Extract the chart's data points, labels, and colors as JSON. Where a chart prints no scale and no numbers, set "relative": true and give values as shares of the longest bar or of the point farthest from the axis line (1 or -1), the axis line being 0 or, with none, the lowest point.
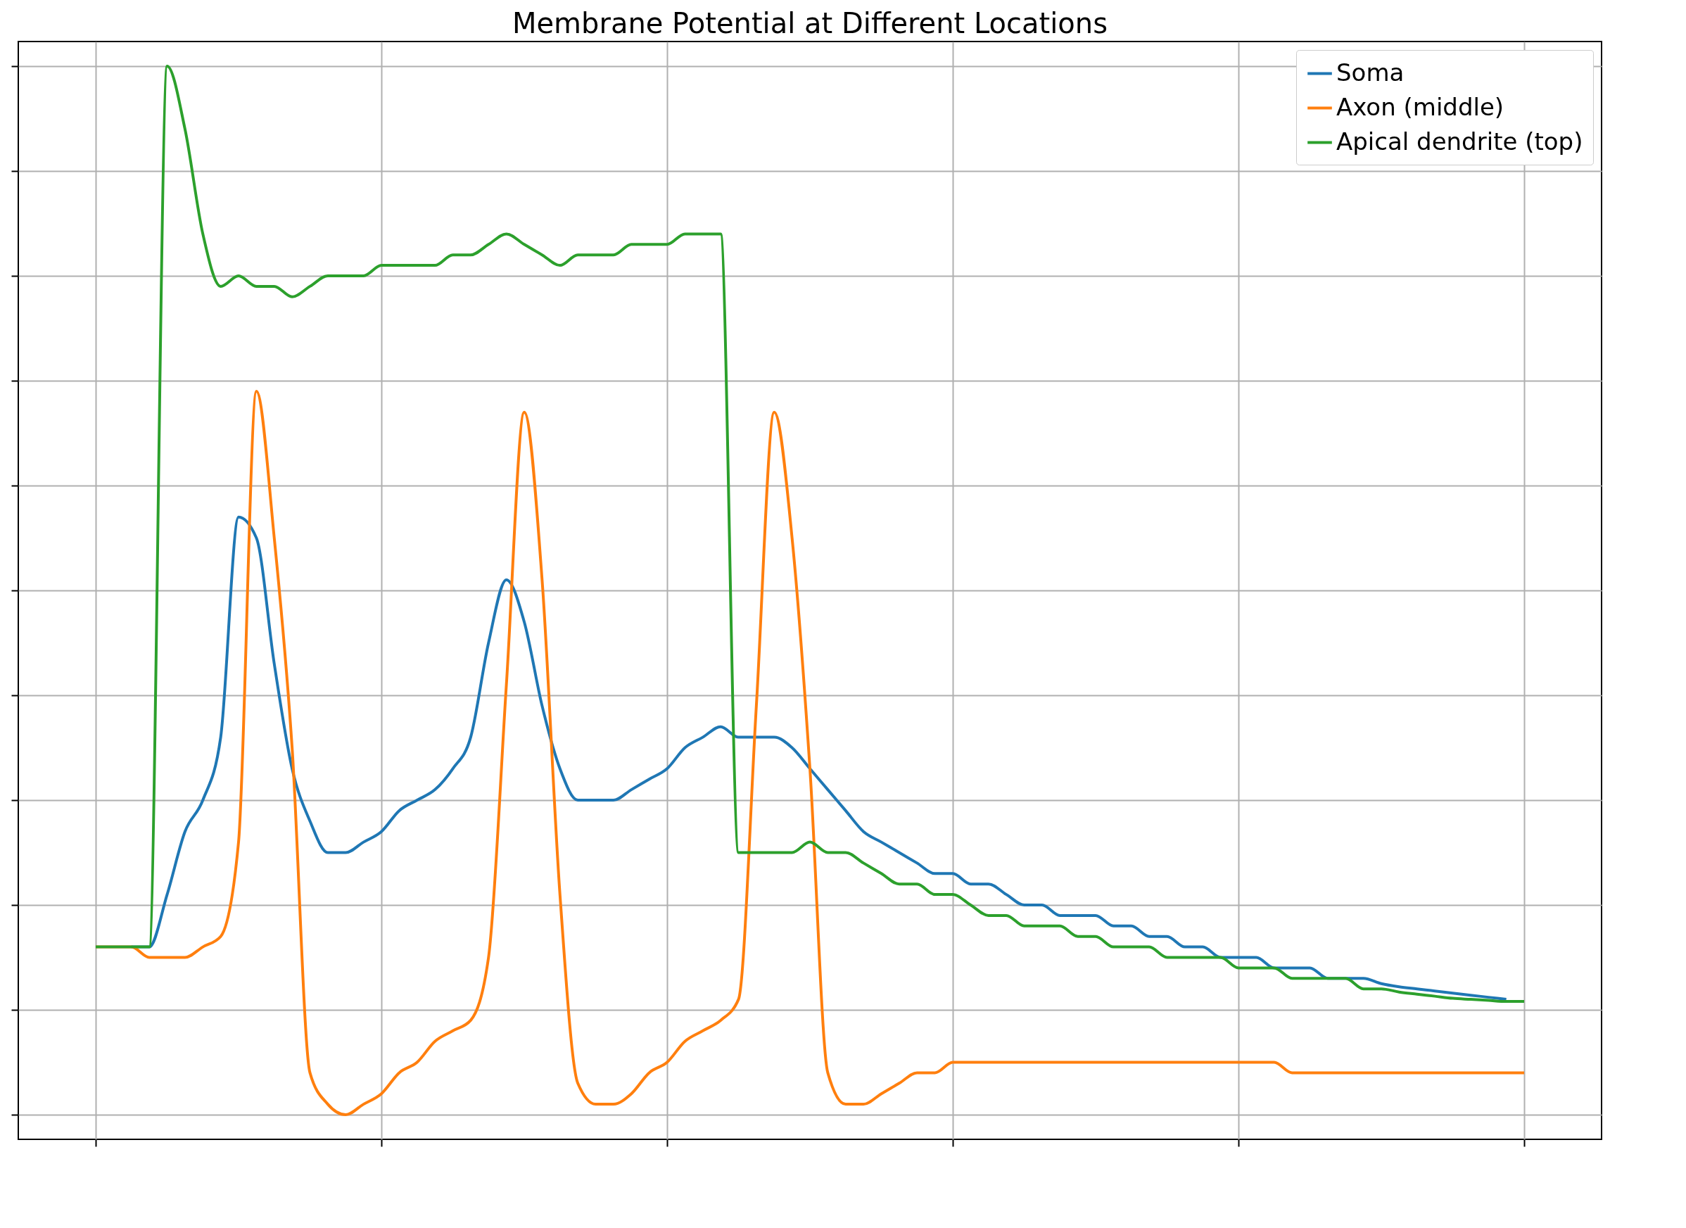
{
  "chart_data": {
    "type": "line",
    "title": "Membrane Potential at Different Locations",
    "relative": true,
    "grid": true,
    "legend": "top right",
    "categories": [
      null,
      null,
      null,
      null,
      null,
      null,
      null,
      null,
      null,
      null,
      null,
      null,
      null,
      null,
      null,
      null,
      null,
      null,
      null,
      null,
      null,
      null,
      null,
      null,
      null,
      null,
      null,
      null,
      null,
      null,
      null,
      null,
      null,
      null,
      null,
      null,
      null,
      null,
      null,
      null,
      null,
      null,
      null,
      null,
      null,
      null,
      null,
      null,
      null,
      null,
      null,
      null,
      null,
      null,
      null,
      null,
      null,
      null,
      null,
      null,
      null,
      null,
      null,
      null,
      null,
      null,
      null,
      null,
      null,
      null,
      null,
      null,
      null,
      null,
      null,
      null,
      null,
      null,
      null,
      null,
      null
    ],
    "series": [
      {
        "name": "Soma",
        "color": "#1f77b4",
        "values": [
          null,
          null,
          0.16,
          0.16,
          0.21,
          0.27,
          0.3,
          0.36,
          0.57,
          0.55,
          0.43,
          0.33,
          0.28,
          0.25,
          0.25,
          0.26,
          0.27,
          0.29,
          0.3,
          0.31,
          0.33,
          0.36,
          0.45,
          0.51,
          0.47,
          0.39,
          0.33,
          0.3,
          0.3,
          0.3,
          0.31,
          0.32,
          0.33,
          0.35,
          0.36,
          0.37,
          0.36,
          0.36,
          0.36,
          0.35,
          0.33,
          0.31,
          0.29,
          0.27,
          0.26,
          0.25,
          0.24,
          0.23,
          0.23,
          0.22,
          0.22,
          0.21,
          0.2,
          0.2,
          0.19,
          0.19,
          0.19,
          0.18,
          0.18,
          0.17,
          0.17,
          0.16,
          0.16,
          0.15,
          0.15,
          0.15,
          0.14,
          0.14,
          0.14,
          0.13,
          0.13,
          0.13,
          0.125,
          0.122,
          0.12,
          0.118,
          0.116,
          0.114,
          0.112,
          0.11,
          null
        ]
      },
      {
        "name": "Axon (middle)",
        "color": "#ff7f0e",
        "values": [
          0.16,
          0.16,
          0.16,
          0.15,
          0.15,
          0.15,
          0.16,
          0.17,
          0.26,
          0.69,
          0.55,
          0.35,
          0.04,
          0.01,
          0,
          0.01,
          0.02,
          0.04,
          0.05,
          0.07,
          0.08,
          0.09,
          0.15,
          0.41,
          0.67,
          0.51,
          0.21,
          0.03,
          0.01,
          0.01,
          0.02,
          0.04,
          0.05,
          0.07,
          0.08,
          0.09,
          0.11,
          0.39,
          0.67,
          0.55,
          0.33,
          0.04,
          0.01,
          0.01,
          0.02,
          0.03,
          0.04,
          0.04,
          0.05,
          0.05,
          0.05,
          0.05,
          0.05,
          0.05,
          0.05,
          0.05,
          0.05,
          0.05,
          0.05,
          0.05,
          0.05,
          0.05,
          0.05,
          0.05,
          0.05,
          0.05,
          0.05,
          0.04,
          0.04,
          0.04,
          0.04,
          0.04,
          0.04,
          0.04,
          0.04,
          0.04,
          0.04,
          0.04,
          0.04,
          0.04,
          0.04
        ]
      },
      {
        "name": "Apical dendrite (top)",
        "color": "#2ca02c",
        "values": [
          0.16,
          0.16,
          0.16,
          0.16,
          1,
          0.94,
          0.84,
          0.79,
          0.8,
          0.79,
          0.79,
          0.78,
          0.79,
          0.8,
          0.8,
          0.8,
          0.81,
          0.81,
          0.81,
          0.81,
          0.82,
          0.82,
          0.83,
          0.84,
          0.83,
          0.82,
          0.81,
          0.82,
          0.82,
          0.82,
          0.83,
          0.83,
          0.83,
          0.84,
          0.84,
          0.84,
          0.25,
          0.25,
          0.25,
          0.25,
          0.26,
          0.25,
          0.25,
          0.24,
          0.23,
          0.22,
          0.22,
          0.21,
          0.21,
          0.2,
          0.19,
          0.19,
          0.18,
          0.18,
          0.18,
          0.17,
          0.17,
          0.16,
          0.16,
          0.16,
          0.15,
          0.15,
          0.15,
          0.15,
          0.14,
          0.14,
          0.14,
          0.13,
          0.13,
          0.13,
          0.13,
          0.12,
          0.12,
          0.117,
          0.115,
          0.113,
          0.111,
          0.11,
          0.109,
          0.108,
          0.108
        ]
      }
    ]
  }
}
